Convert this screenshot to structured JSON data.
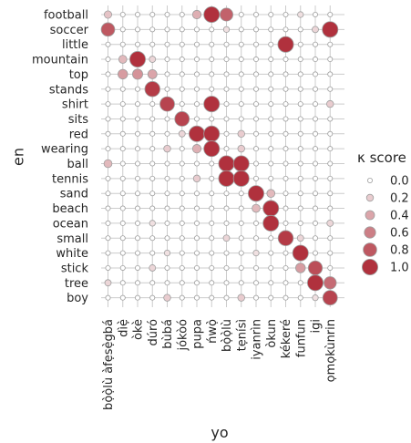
{
  "chart_data": {
    "type": "scatter",
    "xlabel": "yo",
    "ylabel": "en",
    "x_categories": [
      "bọ̀ọ̀lù àfẹsẹ̀gbá",
      "dìẹ̀",
      "òkè",
      "dúró",
      "bùbá",
      "jókòó",
      "pupa",
      "ńwọ̀",
      "bọ̀ọ̀lù",
      "tẹnísì",
      "iyanrìn",
      "òkun",
      "kékeré",
      "funfun",
      "igi",
      "ọmọkùnrin"
    ],
    "y_categories": [
      "football",
      "soccer",
      "little",
      "mountain",
      "top",
      "stands",
      "shirt",
      "sits",
      "red",
      "wearing",
      "ball",
      "tennis",
      "sand",
      "beach",
      "ocean",
      "small",
      "white",
      "stick",
      "tree",
      "boy"
    ],
    "legend": {
      "title": "κ score",
      "values": [
        0.0,
        0.2,
        0.4,
        0.6,
        0.8,
        1.0
      ],
      "labels": [
        "0.0",
        "0.2",
        "0.4",
        "0.6",
        "0.8",
        "1.0"
      ]
    },
    "colors": {
      "low": "#f7f3f3",
      "high": "#b0313d",
      "edge": "#9e9e9e",
      "grid": "#cccccc"
    },
    "points": [
      {
        "y": "football",
        "x": "bọ̀ọ̀lù àfẹsẹ̀gbá",
        "value": 0.25
      },
      {
        "y": "football",
        "x": "pupa",
        "value": 0.35
      },
      {
        "y": "football",
        "x": "ńwọ̀",
        "value": 1.0
      },
      {
        "y": "football",
        "x": "bọ̀ọ̀lù",
        "value": 0.75
      },
      {
        "y": "football",
        "x": "funfun",
        "value": 0.1
      },
      {
        "y": "soccer",
        "x": "bọ̀ọ̀lù àfẹsẹ̀gbá",
        "value": 0.8
      },
      {
        "y": "soccer",
        "x": "bọ̀ọ̀lù",
        "value": 0.1
      },
      {
        "y": "soccer",
        "x": "igi",
        "value": 0.15
      },
      {
        "y": "soccer",
        "x": "ọmọkùnrin",
        "value": 1.0
      },
      {
        "y": "little",
        "x": "kékeré",
        "value": 1.0
      },
      {
        "y": "mountain",
        "x": "dìẹ̀",
        "value": 0.3
      },
      {
        "y": "mountain",
        "x": "òkè",
        "value": 1.0
      },
      {
        "y": "mountain",
        "x": "dúró",
        "value": 0.15
      },
      {
        "y": "top",
        "x": "dìẹ̀",
        "value": 0.45
      },
      {
        "y": "top",
        "x": "òkè",
        "value": 0.5
      },
      {
        "y": "top",
        "x": "dúró",
        "value": 0.4
      },
      {
        "y": "stands",
        "x": "dúró",
        "value": 0.95
      },
      {
        "y": "shirt",
        "x": "bùbá",
        "value": 0.9
      },
      {
        "y": "shirt",
        "x": "ńwọ̀",
        "value": 1.0
      },
      {
        "y": "shirt",
        "x": "ọmọkùnrin",
        "value": 0.2
      },
      {
        "y": "sits",
        "x": "jókòó",
        "value": 0.9
      },
      {
        "y": "red",
        "x": "jókòó",
        "value": 0.15
      },
      {
        "y": "red",
        "x": "pupa",
        "value": 1.0
      },
      {
        "y": "red",
        "x": "ńwọ̀",
        "value": 1.0
      },
      {
        "y": "red",
        "x": "tẹnísì",
        "value": 0.2
      },
      {
        "y": "wearing",
        "x": "bùbá",
        "value": 0.2
      },
      {
        "y": "wearing",
        "x": "pupa",
        "value": 0.35
      },
      {
        "y": "wearing",
        "x": "ńwọ̀",
        "value": 1.0
      },
      {
        "y": "wearing",
        "x": "tẹnísì",
        "value": 0.2
      },
      {
        "y": "ball",
        "x": "bọ̀ọ̀lù àfẹsẹ̀gbá",
        "value": 0.3
      },
      {
        "y": "ball",
        "x": "bọ̀ọ̀lù",
        "value": 1.0
      },
      {
        "y": "ball",
        "x": "tẹnísì",
        "value": 1.0
      },
      {
        "y": "tennis",
        "x": "pupa",
        "value": 0.2
      },
      {
        "y": "tennis",
        "x": "bọ̀ọ̀lù",
        "value": 1.0
      },
      {
        "y": "tennis",
        "x": "tẹnísì",
        "value": 1.0
      },
      {
        "y": "sand",
        "x": "iyanrìn",
        "value": 1.0
      },
      {
        "y": "sand",
        "x": "òkun",
        "value": 0.3
      },
      {
        "y": "beach",
        "x": "iyanrìn",
        "value": 0.3
      },
      {
        "y": "beach",
        "x": "òkun",
        "value": 1.0
      },
      {
        "y": "ocean",
        "x": "dúró",
        "value": 0.1
      },
      {
        "y": "ocean",
        "x": "òkun",
        "value": 1.0
      },
      {
        "y": "ocean",
        "x": "ọmọkùnrin",
        "value": 0.15
      },
      {
        "y": "small",
        "x": "bọ̀ọ̀lù",
        "value": 0.15
      },
      {
        "y": "small",
        "x": "kékeré",
        "value": 0.95
      },
      {
        "y": "small",
        "x": "funfun",
        "value": 0.15
      },
      {
        "y": "white",
        "x": "bùbá",
        "value": 0.1
      },
      {
        "y": "white",
        "x": "iyanrìn",
        "value": 0.1
      },
      {
        "y": "white",
        "x": "funfun",
        "value": 1.0
      },
      {
        "y": "stick",
        "x": "dúró",
        "value": 0.15
      },
      {
        "y": "stick",
        "x": "funfun",
        "value": 0.45
      },
      {
        "y": "stick",
        "x": "igi",
        "value": 0.85
      },
      {
        "y": "tree",
        "x": "bọ̀ọ̀lù àfẹsẹ̀gbá",
        "value": 0.15
      },
      {
        "y": "tree",
        "x": "igi",
        "value": 1.0
      },
      {
        "y": "tree",
        "x": "ọmọkùnrin",
        "value": 0.7
      },
      {
        "y": "boy",
        "x": "bùbá",
        "value": 0.2
      },
      {
        "y": "boy",
        "x": "tẹnísì",
        "value": 0.2
      },
      {
        "y": "boy",
        "x": "igi",
        "value": 0.1
      },
      {
        "y": "boy",
        "x": "ọmọkùnrin",
        "value": 0.9
      }
    ]
  }
}
